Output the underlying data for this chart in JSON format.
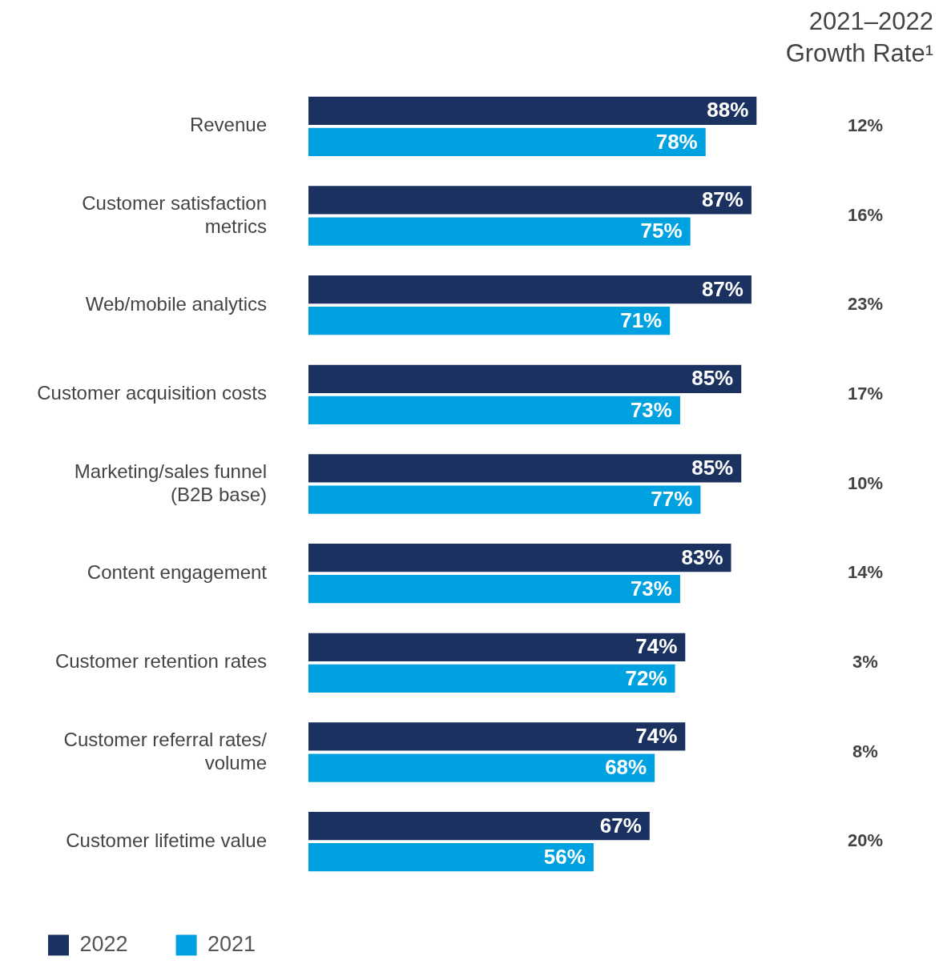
{
  "chart_data": {
    "type": "bar",
    "orientation": "horizontal",
    "categories": [
      "Revenue",
      "Customer satisfaction metrics",
      "Web/mobile analytics",
      "Customer acquisition costs",
      "Marketing/sales funnel (B2B base)",
      "Content engagement",
      "Customer retention rates",
      "Customer referral rates/ volume",
      "Customer lifetime value"
    ],
    "series": [
      {
        "name": "2022",
        "color": "#1b3260",
        "values": [
          88,
          87,
          87,
          85,
          85,
          83,
          74,
          74,
          67
        ],
        "value_labels": [
          "88%",
          "87%",
          "87%",
          "85%",
          "85%",
          "83%",
          "74%",
          "74%",
          "67%"
        ]
      },
      {
        "name": "2021",
        "color": "#00a1e0",
        "values": [
          78,
          75,
          71,
          73,
          77,
          73,
          72,
          68,
          56
        ],
        "value_labels": [
          "78%",
          "75%",
          "71%",
          "73%",
          "77%",
          "73%",
          "72%",
          "68%",
          "56%"
        ]
      }
    ],
    "tick_labels": "y",
    "grid": false,
    "legend": "bottom",
    "annotations": [
      "2021–2022 Growth Rate¹",
      "12%",
      "16%",
      "23%",
      "17%",
      "10%",
      "14%",
      "3%",
      "8%",
      "20%"
    ]
  }
}
